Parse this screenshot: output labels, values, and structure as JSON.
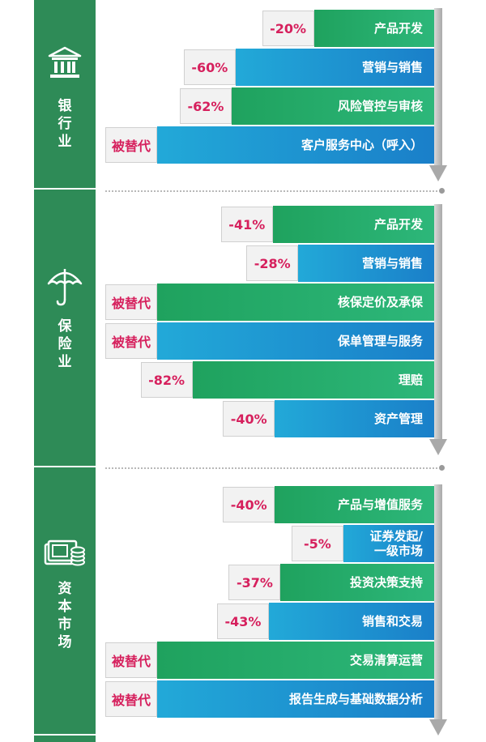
{
  "colors": {
    "sidebar": "#2e8b57",
    "green_bar": "#1fa25e",
    "blue_bar": "#1a7fc9",
    "value_text": "#d6205d",
    "value_box": "#f2f2f2",
    "axis": "#a9a9a9"
  },
  "sections": [
    {
      "id": "banking",
      "label": "银\n行\n业",
      "icon": "bank-icon"
    },
    {
      "id": "insurance",
      "label": "保\n险\n业",
      "icon": "umbrella-icon"
    },
    {
      "id": "capital_markets",
      "label": "资\n本\n市\n场",
      "icon": "money-coins-icon"
    }
  ],
  "chart_data": {
    "type": "bar",
    "orientation": "horizontal",
    "unit": "%",
    "replaced_label": "被替代",
    "groups": [
      {
        "name": "银行业",
        "bars": [
          {
            "category": "产品开发",
            "value": -20,
            "label": "-20%"
          },
          {
            "category": "营销与销售",
            "value": -60,
            "label": "-60%"
          },
          {
            "category": "风险管控与审核",
            "value": -62,
            "label": "-62%"
          },
          {
            "category": "客户服务中心（呼入）",
            "value": -100,
            "label": "被替代"
          }
        ]
      },
      {
        "name": "保险业",
        "bars": [
          {
            "category": "产品开发",
            "value": -41,
            "label": "-41%"
          },
          {
            "category": "营销与销售",
            "value": -28,
            "label": "-28%"
          },
          {
            "category": "核保定价及承保",
            "value": -100,
            "label": "被替代"
          },
          {
            "category": "保单管理与服务",
            "value": -100,
            "label": "被替代"
          },
          {
            "category": "理赔",
            "value": -82,
            "label": "-82%"
          },
          {
            "category": "资产管理",
            "value": -40,
            "label": "-40%"
          }
        ]
      },
      {
        "name": "资本市场",
        "bars": [
          {
            "category": "产品与增值服务",
            "value": -40,
            "label": "-40%"
          },
          {
            "category": "证券发起/\n一级市场",
            "value": -5,
            "label": "-5%"
          },
          {
            "category": "投资决策支持",
            "value": -37,
            "label": "-37%"
          },
          {
            "category": "销售和交易",
            "value": -43,
            "label": "-43%"
          },
          {
            "category": "交易清算运营",
            "value": -100,
            "label": "被替代"
          },
          {
            "category": "报告生成与基础数据分析",
            "value": -100,
            "label": "被替代"
          }
        ]
      }
    ]
  }
}
